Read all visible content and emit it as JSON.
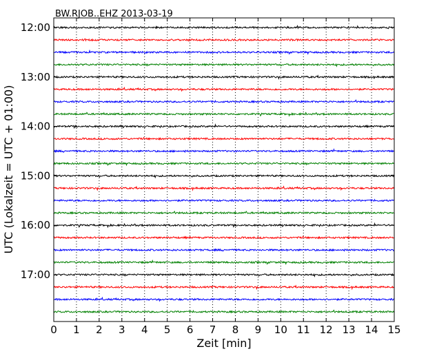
{
  "chart_data": {
    "type": "line",
    "title": "BW.RJOB..EHZ 2013-03-19",
    "xlabel": "Zeit  [min]",
    "ylabel": "UTC (Lokalzeit = UTC + 01:00)",
    "xlim": [
      0,
      15
    ],
    "xticks": [
      0,
      1,
      2,
      3,
      4,
      5,
      6,
      7,
      8,
      9,
      10,
      11,
      12,
      13,
      14,
      15
    ],
    "yticks": [
      "12:00",
      "13:00",
      "14:00",
      "15:00",
      "16:00",
      "17:00"
    ],
    "grid": "vertical dotted",
    "series": [
      {
        "start": "12:00",
        "color": "#000000"
      },
      {
        "start": "12:15",
        "color": "#ff0000"
      },
      {
        "start": "12:30",
        "color": "#0000ff"
      },
      {
        "start": "12:45",
        "color": "#008000"
      },
      {
        "start": "13:00",
        "color": "#000000"
      },
      {
        "start": "13:15",
        "color": "#ff0000"
      },
      {
        "start": "13:30",
        "color": "#0000ff"
      },
      {
        "start": "13:45",
        "color": "#008000"
      },
      {
        "start": "14:00",
        "color": "#000000"
      },
      {
        "start": "14:15",
        "color": "#ff0000"
      },
      {
        "start": "14:30",
        "color": "#0000ff"
      },
      {
        "start": "14:45",
        "color": "#008000"
      },
      {
        "start": "15:00",
        "color": "#000000"
      },
      {
        "start": "15:15",
        "color": "#ff0000"
      },
      {
        "start": "15:30",
        "color": "#0000ff"
      },
      {
        "start": "15:45",
        "color": "#008000"
      },
      {
        "start": "16:00",
        "color": "#000000"
      },
      {
        "start": "16:15",
        "color": "#ff0000"
      },
      {
        "start": "16:30",
        "color": "#0000ff"
      },
      {
        "start": "16:45",
        "color": "#008000"
      },
      {
        "start": "17:00",
        "color": "#000000"
      },
      {
        "start": "17:15",
        "color": "#ff0000"
      },
      {
        "start": "17:30",
        "color": "#0000ff"
      },
      {
        "start": "17:45",
        "color": "#008000"
      }
    ]
  }
}
